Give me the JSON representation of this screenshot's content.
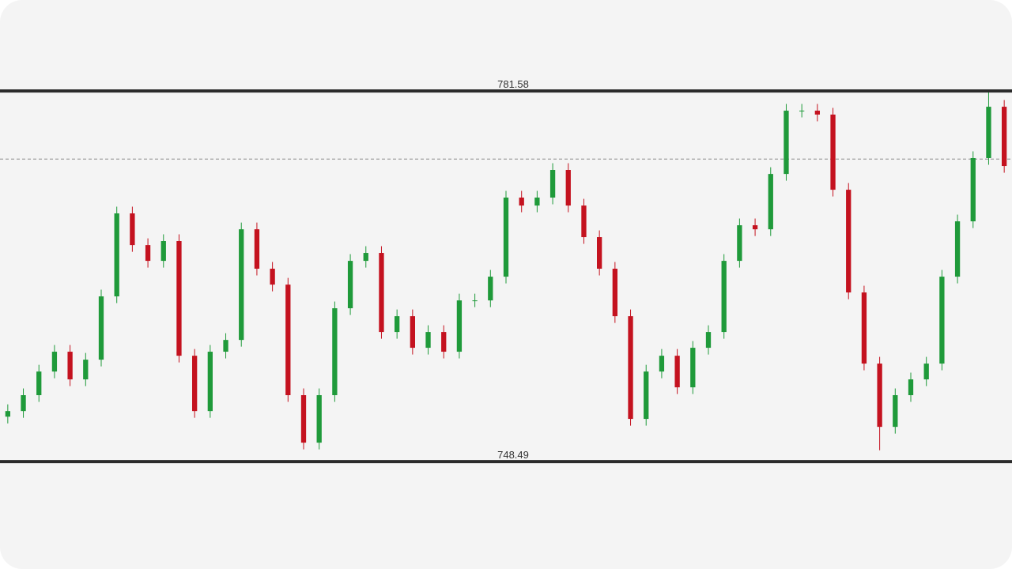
{
  "chart_data": {
    "type": "candlestick",
    "ylim": [
      738.9,
      789.7
    ],
    "levels": [
      781.58,
      748.49
    ],
    "reference_line": 775.5,
    "up_color": "#1f9a3a",
    "down_color": "#c4121f",
    "level_color": "#2b2b2b",
    "ohlc": [
      [
        752.5,
        753.6,
        751.9,
        753.0
      ],
      [
        753.0,
        755.02,
        752.4,
        754.42
      ],
      [
        754.42,
        757.13,
        753.82,
        756.53
      ],
      [
        756.53,
        758.9,
        755.93,
        758.3
      ],
      [
        758.3,
        758.9,
        755.23,
        755.83
      ],
      [
        755.83,
        758.19,
        755.23,
        757.59
      ],
      [
        757.59,
        763.84,
        756.99,
        763.24
      ],
      [
        763.24,
        771.25,
        762.64,
        770.65
      ],
      [
        770.65,
        771.25,
        767.22,
        767.82
      ],
      [
        767.82,
        768.42,
        765.81,
        766.41
      ],
      [
        766.41,
        768.78,
        765.81,
        768.18
      ],
      [
        768.18,
        768.78,
        757.34,
        757.94
      ],
      [
        757.94,
        758.54,
        752.4,
        753.0
      ],
      [
        753.0,
        758.9,
        752.4,
        758.3
      ],
      [
        758.3,
        759.95,
        757.7,
        759.35
      ],
      [
        759.35,
        769.83,
        758.75,
        769.23
      ],
      [
        769.23,
        769.83,
        765.11,
        765.71
      ],
      [
        765.71,
        766.31,
        763.69,
        764.29
      ],
      [
        764.29,
        764.89,
        753.82,
        754.42
      ],
      [
        754.42,
        755.02,
        749.58,
        750.18
      ],
      [
        750.18,
        755.02,
        749.58,
        754.42
      ],
      [
        754.42,
        762.78,
        753.82,
        762.18
      ],
      [
        762.18,
        767.01,
        761.58,
        766.41
      ],
      [
        766.41,
        767.72,
        765.81,
        767.12
      ],
      [
        767.12,
        767.72,
        759.46,
        760.06
      ],
      [
        760.06,
        762.07,
        759.46,
        761.47
      ],
      [
        761.47,
        762.07,
        758.05,
        758.65
      ],
      [
        758.65,
        760.66,
        758.05,
        760.06
      ],
      [
        760.06,
        760.66,
        757.7,
        758.3
      ],
      [
        758.3,
        763.48,
        757.7,
        762.88
      ],
      [
        762.88,
        763.48,
        762.28,
        762.88
      ],
      [
        762.88,
        765.6,
        762.28,
        765.0
      ],
      [
        765.0,
        772.66,
        764.4,
        772.06
      ],
      [
        772.06,
        772.66,
        770.75,
        771.35
      ],
      [
        771.35,
        772.66,
        770.75,
        772.06
      ],
      [
        772.06,
        775.13,
        771.46,
        774.53
      ],
      [
        774.53,
        775.13,
        770.75,
        771.35
      ],
      [
        771.35,
        771.95,
        767.93,
        768.53
      ],
      [
        768.53,
        769.13,
        765.11,
        765.71
      ],
      [
        765.71,
        766.31,
        760.87,
        761.47
      ],
      [
        761.47,
        762.07,
        751.7,
        752.3
      ],
      [
        752.3,
        757.13,
        751.7,
        756.53
      ],
      [
        756.53,
        758.54,
        755.93,
        757.94
      ],
      [
        757.94,
        758.54,
        754.52,
        755.12
      ],
      [
        755.12,
        759.25,
        754.52,
        758.65
      ],
      [
        758.65,
        760.66,
        758.05,
        760.06
      ],
      [
        760.06,
        767.01,
        759.46,
        766.41
      ],
      [
        766.41,
        770.19,
        765.81,
        769.59
      ],
      [
        769.59,
        770.19,
        768.63,
        769.23
      ],
      [
        769.23,
        774.77,
        768.63,
        774.17
      ],
      [
        774.17,
        780.42,
        773.57,
        779.82
      ],
      [
        779.82,
        780.42,
        779.22,
        779.82
      ],
      [
        779.82,
        780.42,
        778.87,
        779.47
      ],
      [
        779.47,
        780.07,
        772.16,
        772.76
      ],
      [
        772.76,
        773.36,
        762.99,
        763.59
      ],
      [
        763.59,
        764.19,
        756.64,
        757.24
      ],
      [
        757.24,
        757.84,
        749.5,
        751.59
      ],
      [
        751.59,
        755.02,
        750.99,
        754.42
      ],
      [
        754.42,
        756.43,
        753.82,
        755.83
      ],
      [
        755.83,
        757.84,
        755.23,
        757.24
      ],
      [
        757.24,
        765.6,
        756.64,
        765.0
      ],
      [
        765.0,
        770.54,
        764.4,
        769.94
      ],
      [
        769.94,
        776.19,
        769.34,
        775.59
      ],
      [
        775.59,
        781.5,
        774.99,
        780.17
      ],
      [
        780.17,
        780.77,
        774.28,
        774.88
      ]
    ]
  }
}
